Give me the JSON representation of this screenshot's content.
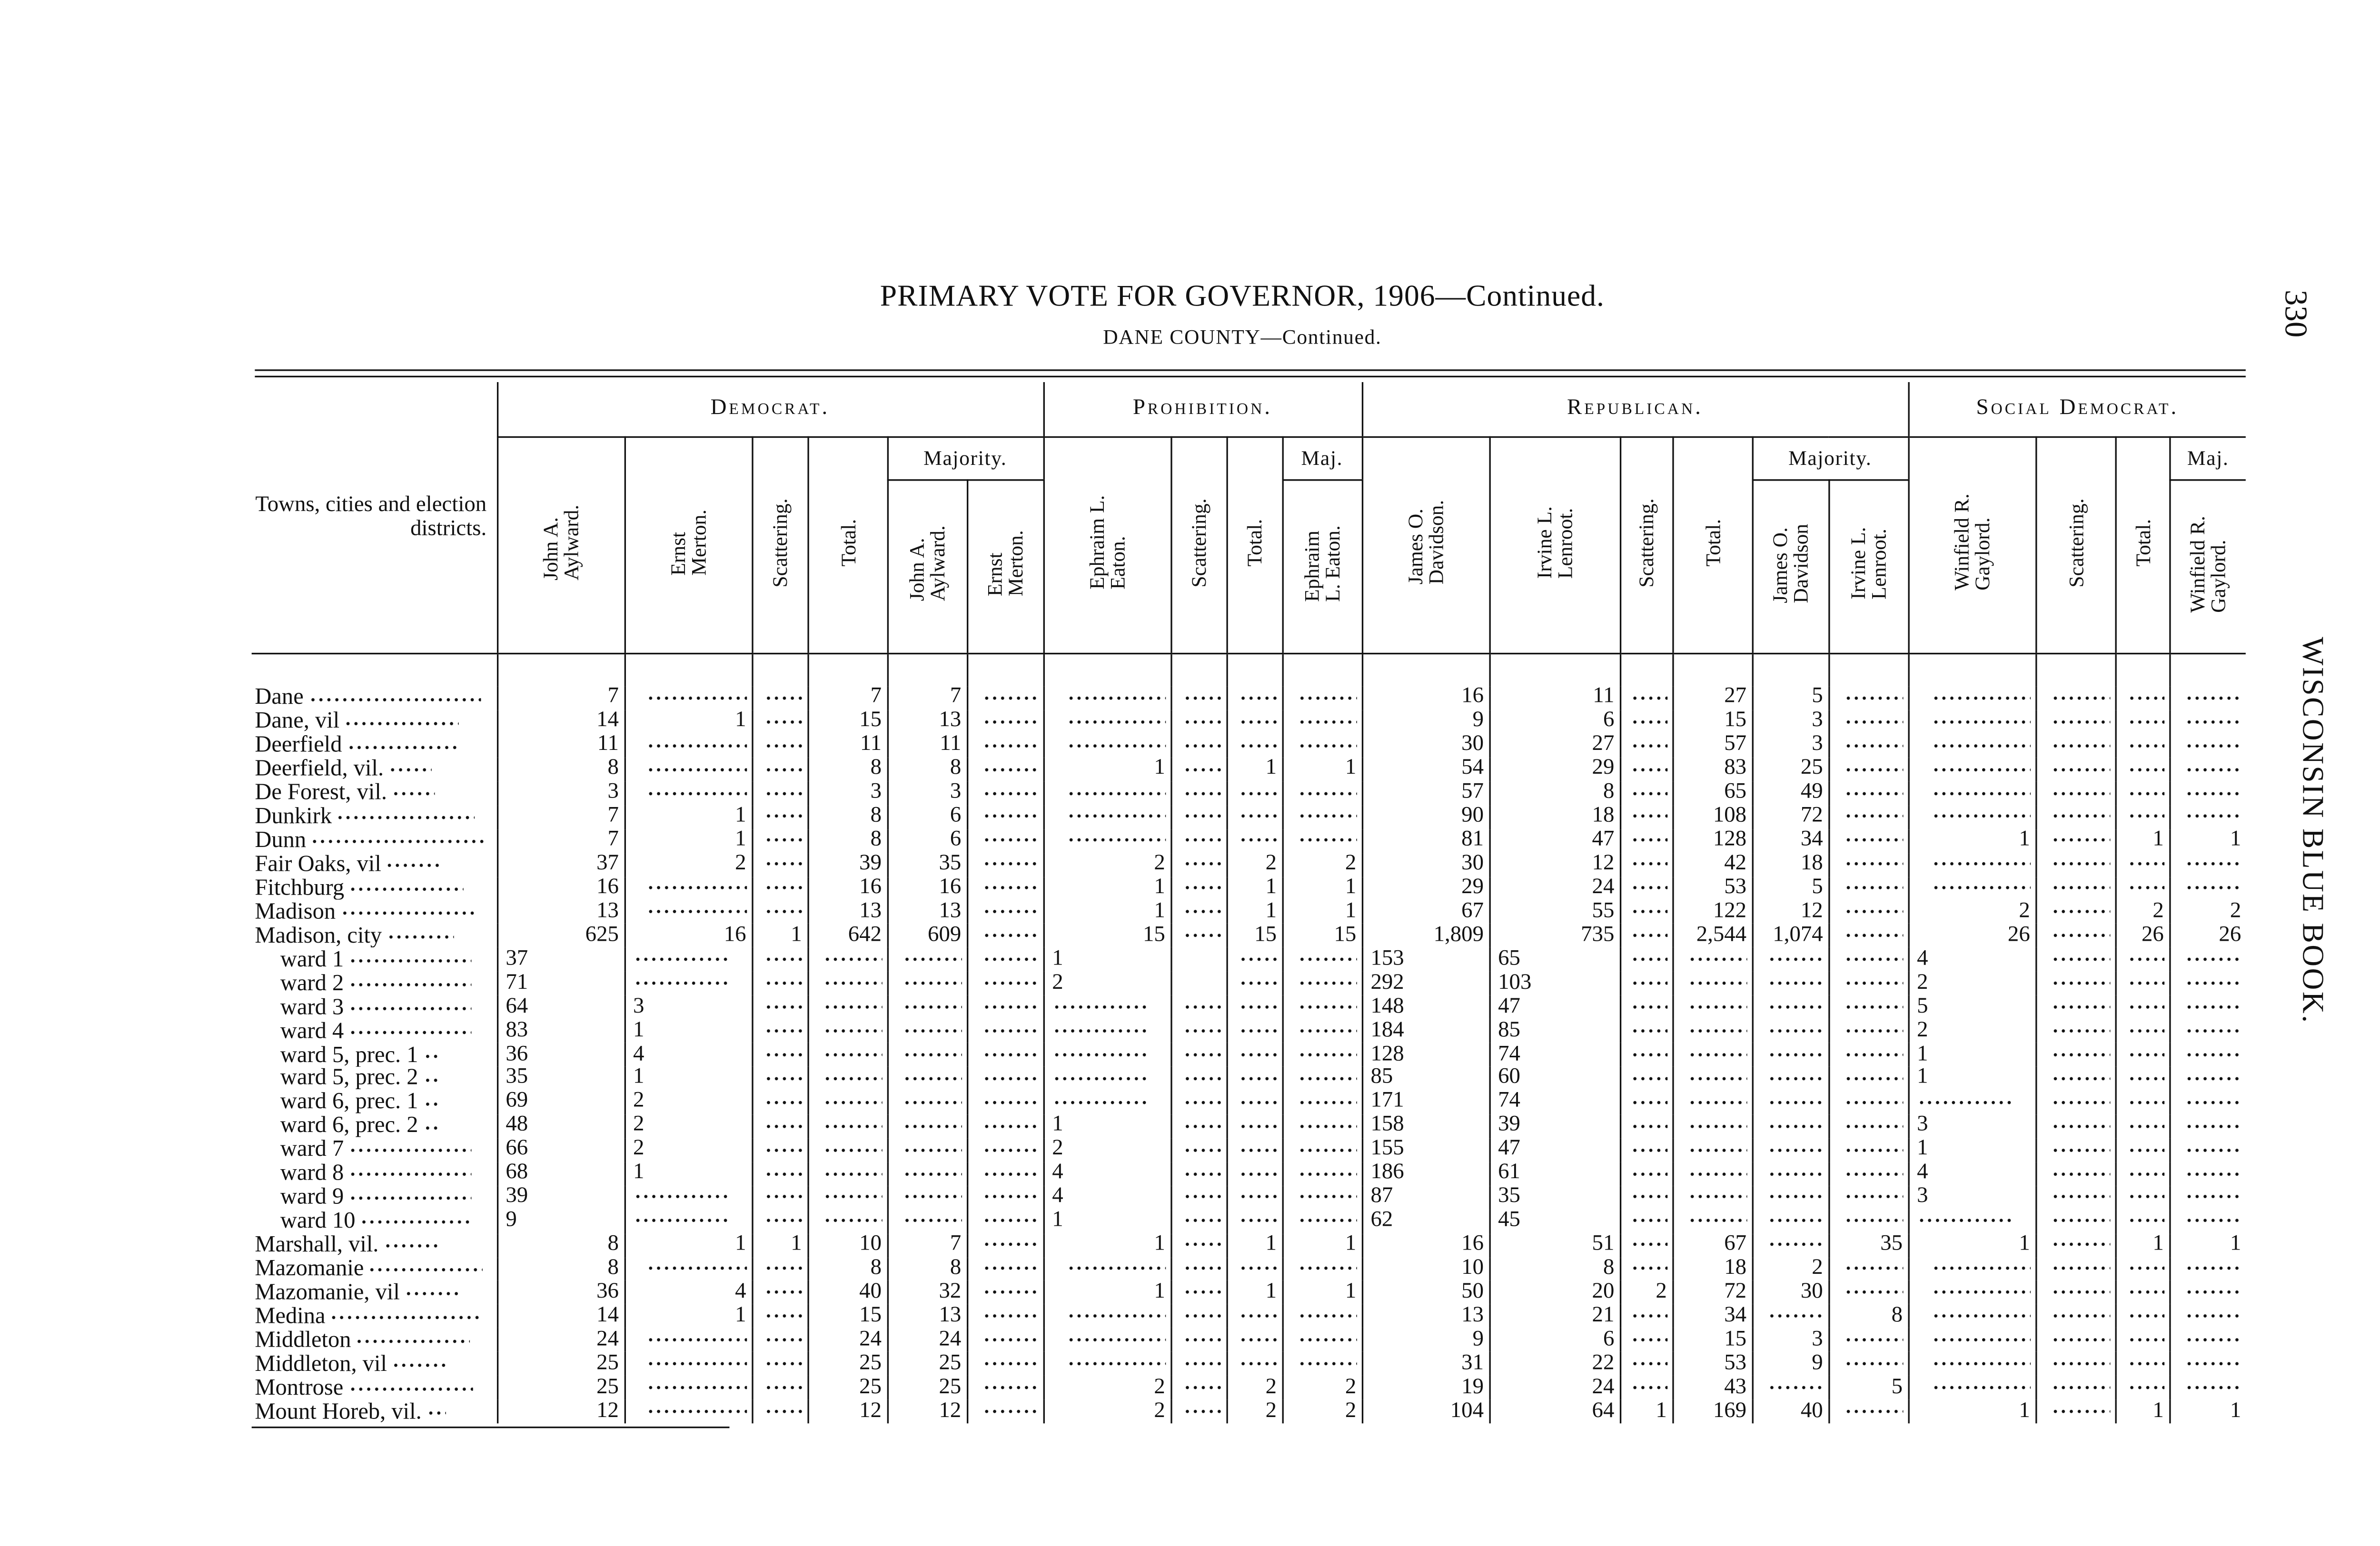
{
  "page": {
    "title": "PRIMARY VOTE FOR GOVERNOR, 1906—Continued.",
    "subtitle": "DANE COUNTY—Continued.",
    "page_number": "330",
    "running_head": "WISCONSIN BLUE BOOK."
  },
  "table": {
    "name_header": "Towns, cities and election districts.",
    "groups": [
      "Democrat.",
      "Prohibition.",
      "Republican.",
      "Social Democrat."
    ],
    "majority_labels": [
      "Majority.",
      "Maj.",
      "Majority.",
      "Maj."
    ],
    "columns": [
      "John A.\nAylward.",
      "Ernst\nMerton.",
      "Scattering.",
      "Total.",
      "John A.\nAylward.",
      "Ernst\nMerton.",
      "Ephraim L.\nEaton.",
      "Scattering.",
      "Total.",
      "Ephraim\nL. Eaton.",
      "James O.\nDavidson.",
      "Irvine L.\nLenroot.",
      "Scattering.",
      "Total.",
      "James O.\nDavidson",
      "Irvine L.\nLenroot.",
      "Winfield R.\nGaylord.",
      "Scattering.",
      "Total.",
      "Winfield R.\nGaylord."
    ],
    "rows": [
      {
        "name": "Dane",
        "values": [
          "7",
          "",
          "",
          "7",
          "7",
          "",
          "",
          "",
          "",
          "",
          "16",
          "11",
          "",
          "27",
          "5",
          "",
          "",
          "",
          "",
          ""
        ]
      },
      {
        "name": "Dane, vil",
        "values": [
          "14",
          "1",
          "",
          "15",
          "13",
          "",
          "",
          "",
          "",
          "",
          "9",
          "6",
          "",
          "15",
          "3",
          "",
          "",
          "",
          "",
          ""
        ]
      },
      {
        "name": "Deerfield",
        "values": [
          "11",
          "",
          "",
          "11",
          "11",
          "",
          "",
          "",
          "",
          "",
          "30",
          "27",
          "",
          "57",
          "3",
          "",
          "",
          "",
          "",
          ""
        ]
      },
      {
        "name": "Deerfield, vil.",
        "values": [
          "8",
          "",
          "",
          "8",
          "8",
          "",
          "1",
          "",
          "1",
          "1",
          "54",
          "29",
          "",
          "83",
          "25",
          "",
          "",
          "",
          "",
          ""
        ]
      },
      {
        "name": "De Forest, vil.",
        "values": [
          "3",
          "",
          "",
          "3",
          "3",
          "",
          "",
          "",
          "",
          "",
          "57",
          "8",
          "",
          "65",
          "49",
          "",
          "",
          "",
          "",
          ""
        ]
      },
      {
        "name": "Dunkirk",
        "values": [
          "7",
          "1",
          "",
          "8",
          "6",
          "",
          "",
          "",
          "",
          "",
          "90",
          "18",
          "",
          "108",
          "72",
          "",
          "",
          "",
          "",
          ""
        ]
      },
      {
        "name": "Dunn",
        "values": [
          "7",
          "1",
          "",
          "8",
          "6",
          "",
          "",
          "",
          "",
          "",
          "81",
          "47",
          "",
          "128",
          "34",
          "",
          "1",
          "",
          "1",
          "1"
        ]
      },
      {
        "name": "Fair Oaks, vil",
        "values": [
          "37",
          "2",
          "",
          "39",
          "35",
          "",
          "2",
          "",
          "2",
          "2",
          "30",
          "12",
          "",
          "42",
          "18",
          "",
          "",
          "",
          "",
          ""
        ]
      },
      {
        "name": "Fitchburg",
        "values": [
          "16",
          "",
          "",
          "16",
          "16",
          "",
          "1",
          "",
          "1",
          "1",
          "29",
          "24",
          "",
          "53",
          "5",
          "",
          "",
          "",
          "",
          ""
        ]
      },
      {
        "name": "Madison",
        "values": [
          "13",
          "",
          "",
          "13",
          "13",
          "",
          "1",
          "",
          "1",
          "1",
          "67",
          "55",
          "",
          "122",
          "12",
          "",
          "2",
          "",
          "2",
          "2"
        ]
      },
      {
        "name": "Madison, city",
        "values": [
          "625",
          "16",
          "1",
          "642",
          "609",
          "",
          "15",
          "",
          "15",
          "15",
          "1,809",
          "735",
          "",
          "2,544",
          "1,074",
          "",
          "26",
          "",
          "26",
          "26"
        ]
      },
      {
        "name": "ward 1",
        "ward": true,
        "values": [
          "37",
          "",
          "",
          "",
          "",
          "",
          "1",
          null,
          "",
          "",
          "153",
          "65",
          "",
          "",
          "",
          "",
          "4",
          "",
          "",
          ""
        ]
      },
      {
        "name": "ward 2",
        "ward": true,
        "values": [
          "71",
          "",
          "",
          "",
          "",
          "",
          "2",
          null,
          "",
          "",
          "292",
          "103",
          "",
          "",
          "",
          "",
          "2",
          "",
          "",
          ""
        ]
      },
      {
        "name": "ward 3",
        "ward": true,
        "values": [
          "64",
          "3",
          "",
          "",
          "",
          "",
          "",
          "",
          "",
          "",
          "148",
          "47",
          "",
          "",
          "",
          "",
          "5",
          "",
          "",
          ""
        ]
      },
      {
        "name": "ward 4",
        "ward": true,
        "values": [
          "83",
          "1",
          "",
          "",
          "",
          "",
          "",
          "",
          "",
          "",
          "184",
          "85",
          "",
          "",
          "",
          "",
          "2",
          "",
          "",
          ""
        ]
      },
      {
        "name": "ward 5, prec. 1",
        "ward": true,
        "values": [
          "36",
          "4",
          "",
          "",
          "",
          "",
          "",
          "",
          "",
          "",
          "128",
          "74",
          "",
          "",
          "",
          "",
          "1",
          "",
          "",
          ""
        ]
      },
      {
        "name": "ward 5, prec. 2",
        "ward": true,
        "values": [
          "35",
          "1",
          "",
          "",
          "",
          "",
          "",
          "",
          "",
          "",
          "85",
          "60",
          "",
          "",
          "",
          "",
          "1",
          "",
          "",
          ""
        ]
      },
      {
        "name": "ward 6, prec. 1",
        "ward": true,
        "values": [
          "69",
          "2",
          "",
          "",
          "",
          "",
          "",
          "",
          "",
          "",
          "171",
          "74",
          "",
          "",
          "",
          "",
          "",
          "",
          "",
          ""
        ]
      },
      {
        "name": "ward 6, prec. 2",
        "ward": true,
        "values": [
          "48",
          "2",
          "",
          "",
          "",
          "",
          "1",
          "",
          "",
          "",
          "158",
          "39",
          "",
          "",
          "",
          "",
          "3",
          "",
          "",
          ""
        ]
      },
      {
        "name": "ward 7",
        "ward": true,
        "values": [
          "66",
          "2",
          "",
          "",
          "",
          "",
          "2",
          "",
          "",
          "",
          "155",
          "47",
          "",
          "",
          "",
          "",
          "1",
          "",
          "",
          ""
        ]
      },
      {
        "name": "ward 8",
        "ward": true,
        "values": [
          "68",
          "1",
          "",
          "",
          "",
          "",
          "4",
          "",
          "",
          "",
          "186",
          "61",
          "",
          "",
          "",
          "",
          "4",
          "",
          "",
          ""
        ]
      },
      {
        "name": "ward 9",
        "ward": true,
        "values": [
          "39",
          "",
          "",
          "",
          "",
          "",
          "4",
          "",
          "",
          "",
          "87",
          "35",
          "",
          "",
          "",
          "",
          "3",
          "",
          "",
          ""
        ]
      },
      {
        "name": "ward 10",
        "ward": true,
        "values": [
          "9",
          "",
          "",
          "",
          "",
          "",
          "1",
          "",
          "",
          "",
          "62",
          "45",
          "",
          "",
          "",
          "",
          "",
          "",
          "",
          ""
        ]
      },
      {
        "name": "Marshall, vil.",
        "values": [
          "8",
          "1",
          "1",
          "10",
          "7",
          "",
          "1",
          "",
          "1",
          "1",
          "16",
          "51",
          "",
          "67",
          "",
          "35",
          "1",
          "",
          "1",
          "1"
        ]
      },
      {
        "name": "Mazomanie",
        "values": [
          "8",
          "",
          "",
          "8",
          "8",
          "",
          "",
          "",
          "",
          "",
          "10",
          "8",
          "",
          "18",
          "2",
          "",
          "",
          "",
          "",
          ""
        ]
      },
      {
        "name": "Mazomanie, vil",
        "values": [
          "36",
          "4",
          "",
          "40",
          "32",
          "",
          "1",
          "",
          "1",
          "1",
          "50",
          "20",
          "2",
          "72",
          "30",
          "",
          "",
          "",
          "",
          ""
        ]
      },
      {
        "name": "Medina",
        "values": [
          "14",
          "1",
          "",
          "15",
          "13",
          "",
          "",
          "",
          "",
          "",
          "13",
          "21",
          "",
          "34",
          "",
          "8",
          "",
          "",
          "",
          ""
        ]
      },
      {
        "name": "Middleton",
        "values": [
          "24",
          "",
          "",
          "24",
          "24",
          "",
          "",
          "",
          "",
          "",
          "9",
          "6",
          "",
          "15",
          "3",
          "",
          "",
          "",
          "",
          ""
        ]
      },
      {
        "name": "Middleton, vil",
        "values": [
          "25",
          "",
          "",
          "25",
          "25",
          "",
          "",
          "",
          "",
          "",
          "31",
          "22",
          "",
          "53",
          "9",
          "",
          "",
          "",
          "",
          ""
        ]
      },
      {
        "name": "Montrose",
        "values": [
          "25",
          "",
          "",
          "25",
          "25",
          "",
          "2",
          "",
          "2",
          "2",
          "19",
          "24",
          "",
          "43",
          "",
          "5",
          "",
          "",
          "",
          ""
        ]
      },
      {
        "name": "Mount Horeb, vil.",
        "values": [
          "12",
          "",
          "",
          "12",
          "12",
          "",
          "2",
          "",
          "2",
          "2",
          "104",
          "64",
          "1",
          "169",
          "40",
          "",
          "1",
          "",
          "1",
          "1"
        ]
      }
    ]
  }
}
